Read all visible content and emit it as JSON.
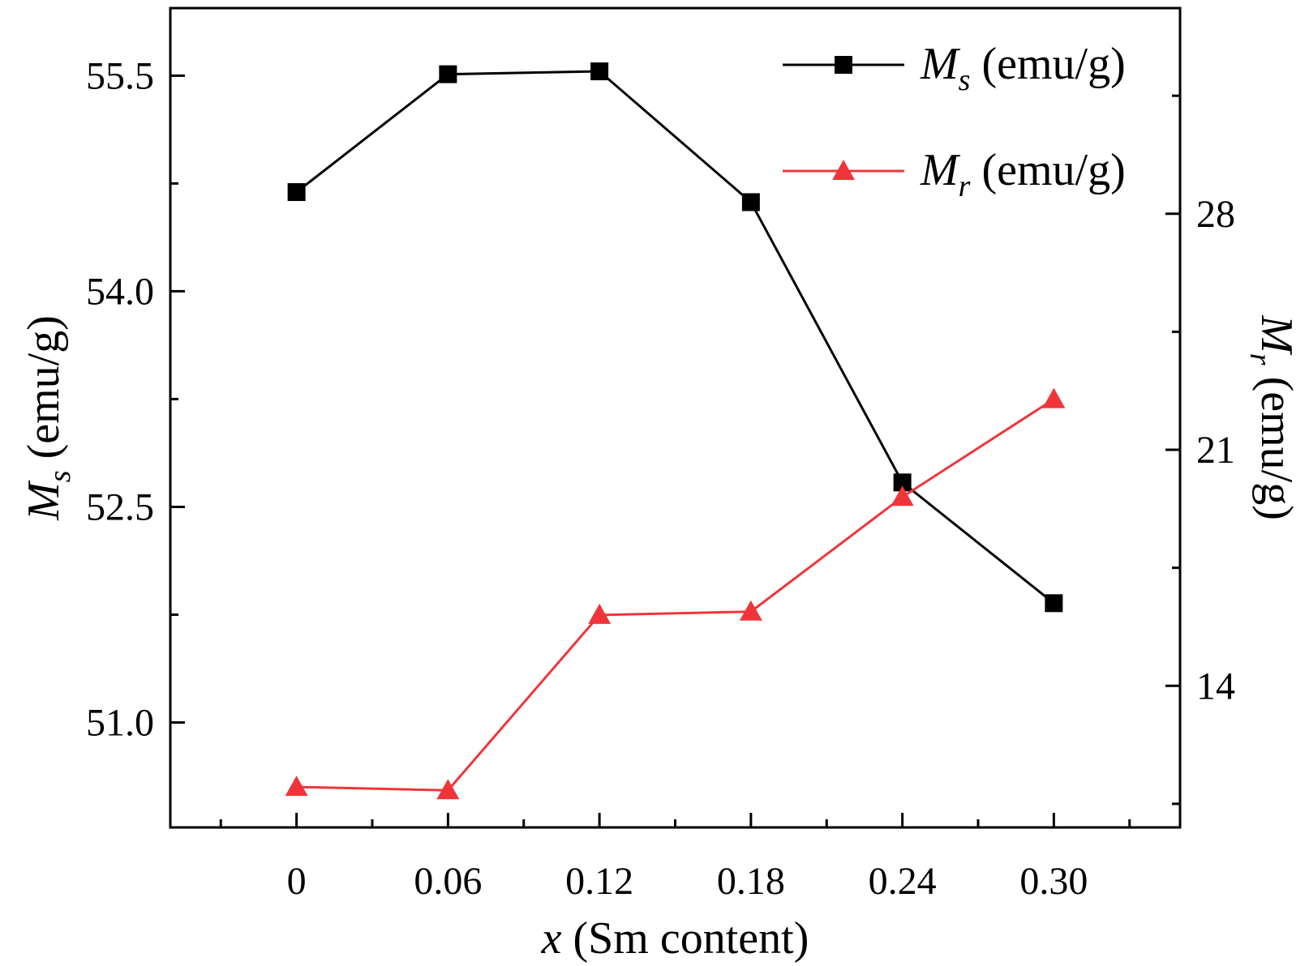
{
  "chart_data": {
    "type": "line",
    "x": [
      0,
      0.06,
      0.12,
      0.18,
      0.24,
      0.3
    ],
    "x_tick_labels": [
      "0",
      "0.06",
      "0.12",
      "0.18",
      "0.24",
      "0.30"
    ],
    "xlim": [
      -0.05,
      0.35
    ],
    "xlabel": {
      "var": "x",
      "rest": " (Sm content)"
    },
    "left_axis": {
      "label": {
        "main": "M",
        "sub": "s",
        "rest": " (emu/g)"
      },
      "ylim": [
        50.27,
        55.97
      ],
      "ticks": [
        51.0,
        52.5,
        54.0,
        55.5
      ],
      "tick_labels": [
        "51.0",
        "52.5",
        "54.0",
        "55.5"
      ]
    },
    "right_axis": {
      "label": {
        "main": "M",
        "sub": "r",
        "rest": " (emu/g)"
      },
      "ylim": [
        9.8,
        34.1
      ],
      "ticks": [
        14,
        21,
        28
      ],
      "tick_labels": [
        "14",
        "21",
        "28"
      ]
    },
    "series": [
      {
        "name": "Ms (emu/g)",
        "legend": {
          "main": "M",
          "sub": "s",
          "rest": " (emu/g)"
        },
        "axis": "left",
        "marker": "square",
        "color": "#000000",
        "values": [
          54.69,
          55.51,
          55.53,
          54.62,
          52.67,
          51.83
        ]
      },
      {
        "name": "Mr (emu/g)",
        "legend": {
          "main": "M",
          "sub": "r",
          "rest": " (emu/g)"
        },
        "axis": "right",
        "marker": "triangle",
        "color": "#f0353a",
        "values": [
          11.0,
          10.9,
          16.1,
          16.2,
          19.6,
          22.5
        ]
      }
    ],
    "legend_position": "top-right",
    "grid": false
  }
}
